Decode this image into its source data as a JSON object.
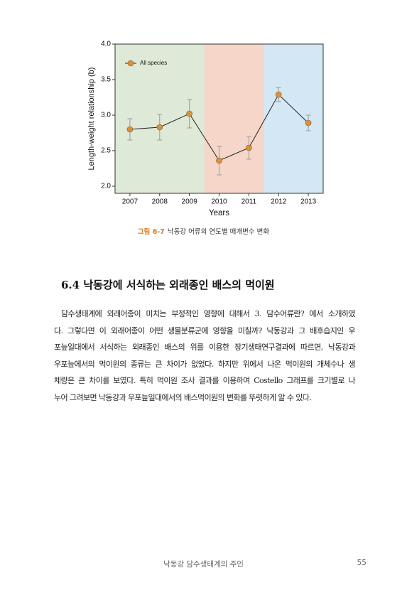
{
  "chart_data": {
    "type": "line",
    "xlabel": "Years",
    "ylabel": "Length-weight relationship (b)",
    "categories": [
      "2007",
      "2008",
      "2009",
      "2010",
      "2011",
      "2012",
      "2013"
    ],
    "background_colors": [
      "#dfe9d8",
      "#dfe9d8",
      "#dfe9d8",
      "#f6d6c9",
      "#f6d6c9",
      "#d3e7f4",
      "#d3e7f4"
    ],
    "series": [
      {
        "name": "All species",
        "color": "#d9913c",
        "line_color": "#222222",
        "error_color": "#999999",
        "values": [
          2.8,
          2.83,
          3.02,
          2.36,
          2.54,
          3.29,
          2.89
        ],
        "errors": [
          0.15,
          0.18,
          0.2,
          0.2,
          0.16,
          0.1,
          0.11
        ]
      }
    ],
    "ylim": [
      1.9,
      4.0
    ],
    "yticks": [
      {
        "value": 2,
        "label": "2.0"
      },
      {
        "value": 2.5,
        "label": "2.5"
      },
      {
        "value": 3,
        "label": "3.0"
      },
      {
        "value": 3.5,
        "label": "3.5"
      },
      {
        "value": 4,
        "label": "4.0"
      }
    ],
    "legend": "upper left"
  },
  "figure": {
    "label": "그림 6-7",
    "caption": "낙동강 어류의 연도별 매개변수 변화"
  },
  "section": {
    "heading": "6.4 낙동강에 서식하는 외래종인 배스의 먹이원",
    "lines": [
      "담수생태계에 외래어종이 미치는 부정적인 영향에 대해서 3. 담수어류란? 에서 소개하였",
      "다. 그렇다면 이 외래어종이 어떤 생물분류군에 영향을 미칠까? 낙동강과 그 배후습지인 우",
      "포늪일대에서 서식하는 외래종인 배스의 위를 이용한 장기생태연구결과에 따르면, 낙동강과",
      "우포늪에서의 먹이원의 종류는 큰 차이가 없었다. 하지만 위에서 나온 먹이원의 개체수나 생",
      "체량은 큰 차이를 보였다. 특히 먹이원 조사 결과를 이용하여 Costello 그래프를 크기별로 나",
      "누어 그려보면 낙동강과 우포늪일대에서의 배스먹이원의 변화를 뚜렷하게 알 수 있다."
    ]
  },
  "footer": {
    "title": "낙동강 담수생태계의 주인",
    "page": "55"
  }
}
